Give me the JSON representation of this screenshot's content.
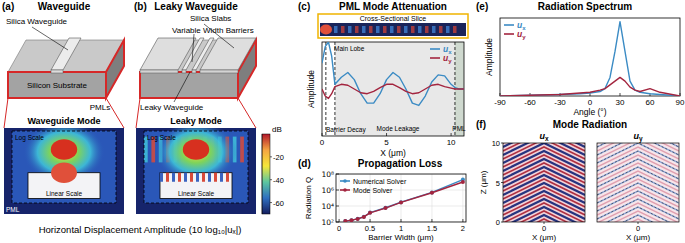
{
  "diagrams": [
    {
      "label": "(a)",
      "title": "Waveguide",
      "callouts": [
        "Silica Waveguide",
        "Silicon Substrate",
        "PMLs"
      ],
      "mode_title": "Waveguide Mode",
      "scales": [
        "Log Scale",
        "Linear Scale"
      ],
      "pml": "PML",
      "leaky": false
    },
    {
      "label": "(b)",
      "title": "Leaky Waveguide",
      "callouts": [
        "Silica Slabs",
        "Variable Width Barriers",
        "Leaky Waveguide"
      ],
      "mode_title": "Leaky Mode",
      "scales": [
        "Log Scale",
        "Linear Scale"
      ],
      "leaky": true
    }
  ],
  "colorbar": {
    "label": "dB",
    "range": [
      -70,
      0
    ],
    "ticks": [
      -20,
      -40,
      -60
    ]
  },
  "caption": "Horizontal Displacement Amplitude (10 log₁₀|uₓ|)",
  "chart_data": [
    {
      "type": "line",
      "label": "(c)",
      "title": "PML Mode Attenuation",
      "inset_title": "Cross-Sectional Slice",
      "x_label": "X (μm)",
      "y_label": "Amplitude",
      "x": [
        0,
        0.25,
        0.5,
        0.75,
        1,
        1.5,
        2,
        2.5,
        3,
        3.5,
        4,
        4.5,
        5,
        5.5,
        6,
        6.5,
        7,
        7.5,
        8,
        8.5,
        9,
        9.5,
        10,
        10.3,
        10.6,
        11
      ],
      "xlim": [
        0,
        11
      ],
      "xticks": [
        0,
        5,
        10
      ],
      "ylim": [
        -1,
        1
      ],
      "tick_labels": "x",
      "legend": "upper right",
      "vlines": [
        0.3,
        1.0,
        10.3
      ],
      "annotations": [
        "Main Lobe",
        "Barrier Decay",
        "Mode Leakage",
        "PML"
      ],
      "series": [
        {
          "name": "ux",
          "color": "#3b8bc4",
          "values": [
            0.55,
            0.9,
            1.0,
            0.7,
            0.1,
            0.25,
            0.35,
            0.2,
            -0.1,
            -0.3,
            -0.3,
            -0.1,
            0.2,
            0.35,
            0.25,
            0,
            -0.3,
            -0.35,
            -0.15,
            0.15,
            0.3,
            0.28,
            0.1,
            0.03,
            0,
            0
          ]
        },
        {
          "name": "uy",
          "color": "#a3253f",
          "values": [
            0,
            -0.15,
            -0.2,
            -0.1,
            0.05,
            0.1,
            0.08,
            0,
            -0.08,
            -0.1,
            -0.05,
            0.03,
            0.1,
            0.1,
            0.03,
            -0.05,
            -0.1,
            -0.08,
            0,
            0.08,
            0.1,
            0.05,
            0.02,
            0,
            0,
            0
          ]
        }
      ]
    },
    {
      "type": "line",
      "label": "(d)",
      "title": "Propagation Loss",
      "x_label": "Barrier Width (μm)",
      "y_label": "Radiation Q",
      "x": [
        0.1,
        0.2,
        0.3,
        0.4,
        0.5,
        0.75,
        1,
        1.5,
        2
      ],
      "xlim": [
        -0.05,
        2.05
      ],
      "xticks": [
        0,
        0.5,
        1,
        1.5,
        2
      ],
      "ylim": [
        100,
        100000000
      ],
      "log": "y",
      "grid": true,
      "legend": "upper left",
      "yticks": [
        {
          "value": 100,
          "label": "10²"
        },
        {
          "value": 10000,
          "label": "10⁴"
        },
        {
          "value": 1000000,
          "label": "10⁶"
        },
        {
          "value": 100000000,
          "label": "10⁸"
        }
      ],
      "series": [
        {
          "name": "Numerical Solver",
          "color": "#3b8bc4",
          "marker": "circle",
          "values": [
            130,
            170,
            250,
            450,
            1500,
            6000,
            30000,
            500000,
            20000000
          ]
        },
        {
          "name": "Mode Solver",
          "color": "#a3253f",
          "marker": "circle",
          "values": [
            130,
            170,
            245,
            430,
            1400,
            5500,
            28000,
            450000,
            10000000
          ]
        }
      ]
    },
    {
      "type": "line",
      "label": "(e)",
      "title": "Radiation Spectrum",
      "x_label": "Angle (°)",
      "y_label": "Amplitude",
      "x": [
        -90,
        -60,
        -30,
        -10,
        0,
        10,
        15,
        20,
        25,
        30,
        35,
        40,
        45,
        50,
        60,
        70,
        90
      ],
      "xlim": [
        -90,
        90
      ],
      "xticks": [
        -90,
        -60,
        -30,
        0,
        30,
        60,
        90
      ],
      "ylim": [
        0,
        1.05
      ],
      "tick_labels": "x",
      "legend": "upper left",
      "series": [
        {
          "name": "ux",
          "color": "#3b8bc4",
          "values": [
            0,
            0.01,
            0.02,
            0.03,
            0.04,
            0.06,
            0.1,
            0.25,
            0.6,
            1.0,
            0.6,
            0.2,
            0.08,
            0.05,
            0.03,
            0.02,
            0
          ]
        },
        {
          "name": "uy",
          "color": "#a3253f",
          "values": [
            0,
            0.01,
            0.02,
            0.04,
            0.05,
            0.08,
            0.1,
            0.15,
            0.2,
            0.25,
            0.2,
            0.12,
            0.08,
            0.06,
            0.1,
            0.05,
            0
          ]
        }
      ]
    },
    {
      "type": "image",
      "label": "(f)",
      "title": "Mode Radiation",
      "x_label": "X (μm)",
      "y_label": "Z (μm)",
      "panels": [
        "ux",
        "uy"
      ],
      "xlim": [
        -1.5,
        1.5
      ],
      "xticks": [
        0
      ],
      "ylim": [
        0,
        10
      ],
      "yticks": [
        0,
        5,
        10
      ]
    }
  ]
}
